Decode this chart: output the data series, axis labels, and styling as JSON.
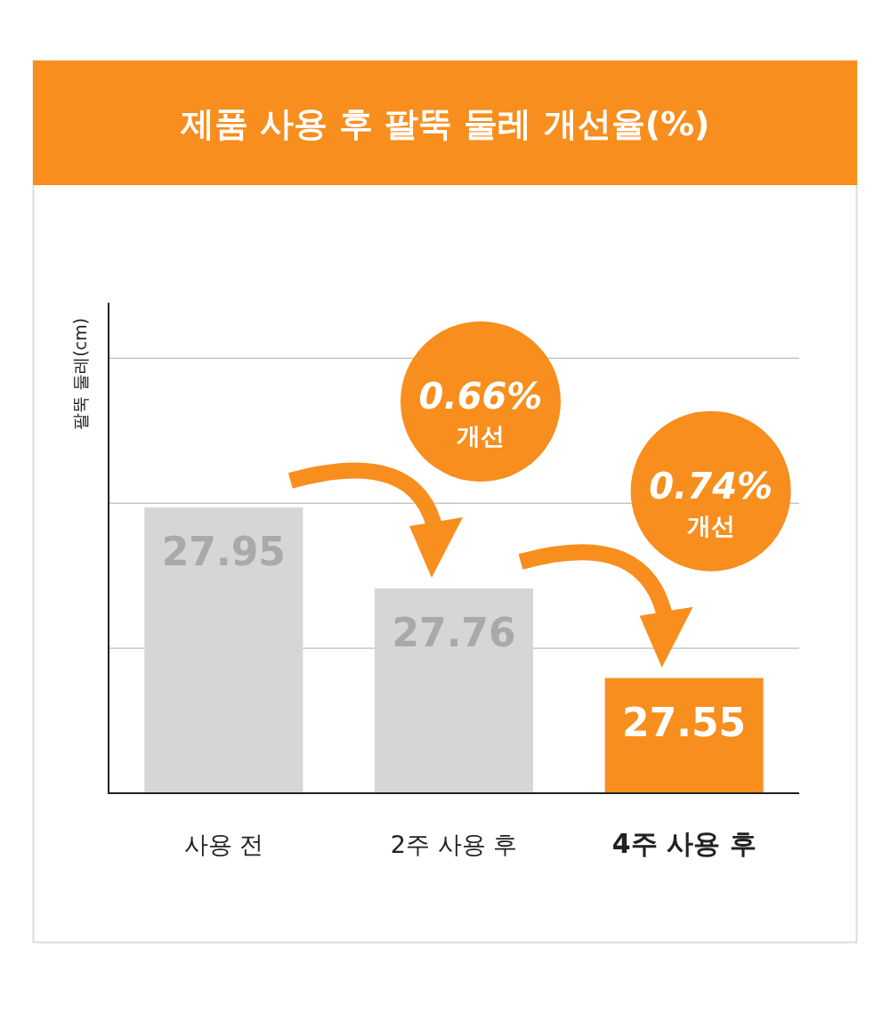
{
  "chart_data": {
    "type": "bar",
    "title": "제품 사용 후 팔뚝 둘레 개선율(%)",
    "ylabel": "팔뚝 둘레(cm)",
    "categories": [
      "사용 전",
      "2주 사용 후",
      "4주 사용 후"
    ],
    "values": [
      27.95,
      27.76,
      27.55
    ],
    "data_labels": true,
    "colors": [
      "#d6d6d6",
      "#d6d6d6",
      "#f78e1e"
    ],
    "ylim": [
      27.28,
      28.43
    ],
    "yticks": [
      {
        "value": 27.62,
        "label": null
      },
      {
        "value": 27.96,
        "label": null
      },
      {
        "value": 28.3,
        "label": null
      }
    ],
    "grid": "y",
    "annotations": [
      "0.66%",
      "개선",
      "0.74%",
      "개선"
    ]
  }
}
